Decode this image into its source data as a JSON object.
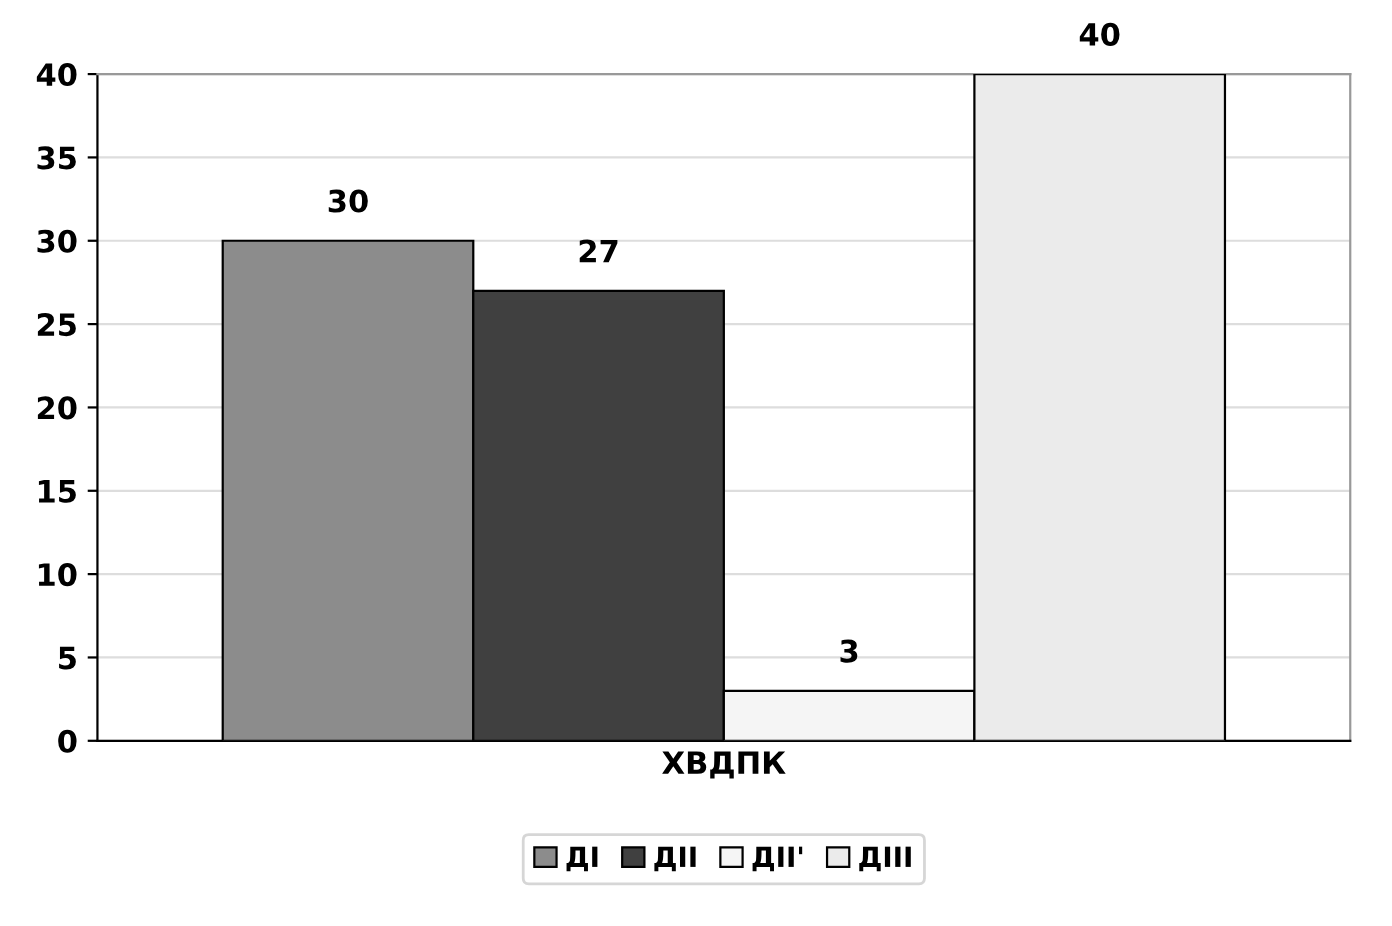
{
  "chart_data": {
    "type": "bar",
    "categories": [
      "ХВДПК"
    ],
    "series": [
      {
        "name": "ДІ",
        "color": "#8c8c8c",
        "values": [
          30
        ]
      },
      {
        "name": "ДІІ",
        "color": "#404040",
        "values": [
          27
        ]
      },
      {
        "name": "ДІІ'",
        "color": "#f5f5f5",
        "values": [
          3
        ]
      },
      {
        "name": "ДІІІ",
        "color": "#ebebeb",
        "values": [
          40
        ]
      }
    ],
    "ylim": [
      0,
      40
    ],
    "yticks": [
      0,
      5,
      10,
      15,
      20,
      25,
      30,
      35,
      40
    ],
    "grid": "y",
    "legend": "bottom",
    "data_labels": true
  }
}
